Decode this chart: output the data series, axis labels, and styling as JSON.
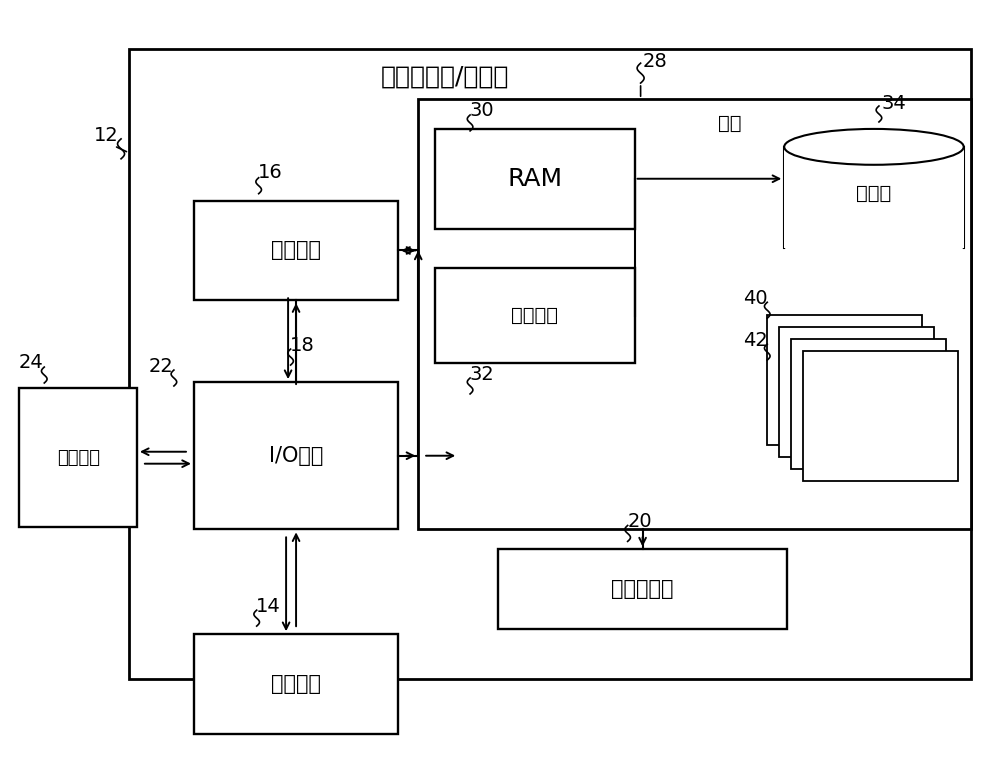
{
  "bg_color": "#ffffff",
  "title": "计算机系统/服务器",
  "memory_label": "内存",
  "ram_label": "RAM",
  "cache_label": "高速缓存",
  "cpu_label": "处理单元",
  "io_label": "I/O接口",
  "net_label": "网络适配器",
  "display_label": "显示设备",
  "ext_label": "外部设备",
  "storage_label": "存储器",
  "refs": {
    "r12": "12",
    "r14": "14",
    "r16": "16",
    "r18": "18",
    "r20": "20",
    "r22": "22",
    "r24": "24",
    "r28": "28",
    "r30": "30",
    "r32": "32",
    "r34": "34",
    "r40": "40",
    "r42": "42"
  }
}
